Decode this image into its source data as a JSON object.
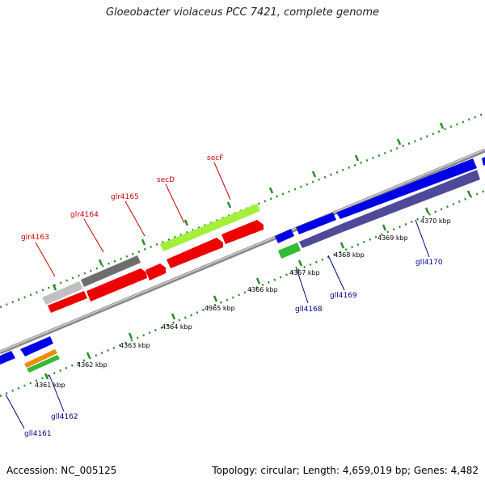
{
  "title": "Gloeobacter violaceus PCC 7421, complete genome",
  "footer": {
    "accession": "Accession: NC_005125",
    "summary": "Topology: circular; Length: 4,659,019 bp; Genes: 4,482"
  },
  "colors": {
    "backbone": "#8a8a8a",
    "tick_dots": "#2e8b2e",
    "top_label": "#cc0000",
    "bottom_label": "#00008b",
    "red_gene": "#ee0000",
    "lime_gene": "#a4ef3a",
    "gray_gene": "#6e6e6e",
    "lightgray_gene": "#c0c0c0",
    "blue_gene": "#0000e6",
    "purple_gene": "#4e4a99",
    "green_gene": "#33bb33",
    "orange_gene": "#f08c00"
  },
  "scale_labels": [
    "4361 kbp",
    "4362 kbp",
    "4363 kbp",
    "4364 kbp",
    "4365 kbp",
    "4366 kbp",
    "4367 kbp",
    "4368 kbp",
    "4369 kbp",
    "4370 kbp"
  ],
  "top_gene_labels": [
    "glr4163",
    "glr4164",
    "glr4165",
    "secD",
    "secF"
  ],
  "bottom_gene_labels": [
    "gll4161",
    "gll4162",
    "gll4168",
    "gll4169",
    "gll4170"
  ]
}
